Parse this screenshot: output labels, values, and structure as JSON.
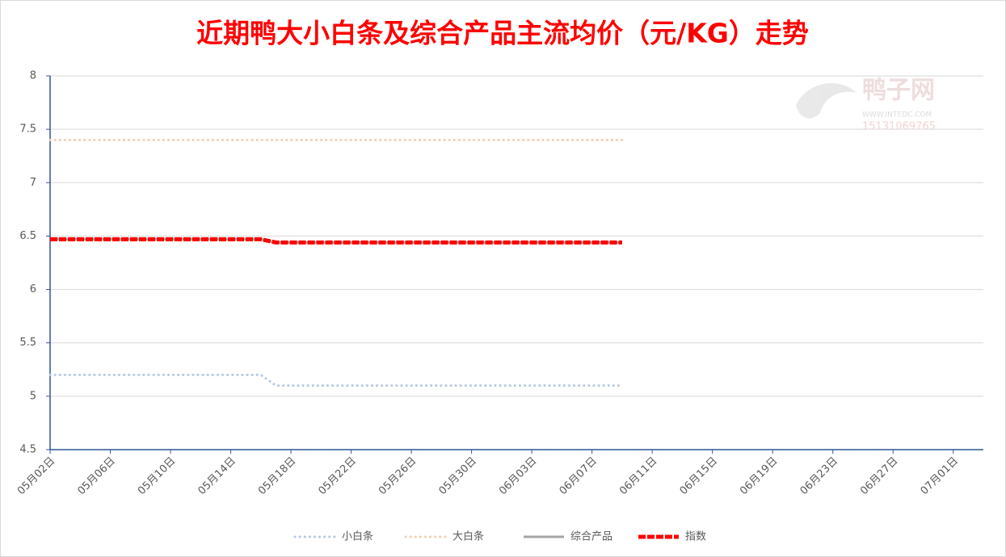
{
  "chart_data": {
    "type": "line",
    "title": "近期鸭大小白条及综合产品主流均价（元/KG）走势",
    "watermark": {
      "name": "鸭子网",
      "site": "WWW.INTEDC.COM",
      "phone": "15131069765"
    },
    "x": [
      "05月02日",
      "05月03日",
      "05月04日",
      "05月05日",
      "05月06日",
      "05月07日",
      "05月08日",
      "05月09日",
      "05月10日",
      "05月11日",
      "05月12日",
      "05月13日",
      "05月14日",
      "05月15日",
      "05月16日",
      "05月17日",
      "05月18日",
      "05月19日",
      "05月20日",
      "05月21日",
      "05月22日",
      "05月23日",
      "05月24日",
      "05月25日",
      "05月26日",
      "05月27日",
      "05月28日",
      "05月29日",
      "05月30日",
      "05月31日",
      "06月01日",
      "06月02日",
      "06月03日",
      "06月04日",
      "06月05日",
      "06月06日",
      "06月07日",
      "06月08日",
      "06月09日"
    ],
    "series": [
      {
        "name": "小白条",
        "color": "#b4c7e7",
        "style": "dotted",
        "values": [
          5.2,
          5.2,
          5.2,
          5.2,
          5.2,
          5.2,
          5.2,
          5.2,
          5.2,
          5.2,
          5.2,
          5.2,
          5.2,
          5.2,
          5.2,
          5.1,
          5.1,
          5.1,
          5.1,
          5.1,
          5.1,
          5.1,
          5.1,
          5.1,
          5.1,
          5.1,
          5.1,
          5.1,
          5.1,
          5.1,
          5.1,
          5.1,
          5.1,
          5.1,
          5.1,
          5.1,
          5.1,
          5.1,
          5.1
        ]
      },
      {
        "name": "大白条",
        "color": "#f8cbad",
        "style": "dotted",
        "values": [
          7.4,
          7.4,
          7.4,
          7.4,
          7.4,
          7.4,
          7.4,
          7.4,
          7.4,
          7.4,
          7.4,
          7.4,
          7.4,
          7.4,
          7.4,
          7.4,
          7.4,
          7.4,
          7.4,
          7.4,
          7.4,
          7.4,
          7.4,
          7.4,
          7.4,
          7.4,
          7.4,
          7.4,
          7.4,
          7.4,
          7.4,
          7.4,
          7.4,
          7.4,
          7.4,
          7.4,
          7.4,
          7.4,
          7.4
        ]
      },
      {
        "name": "综合产品",
        "color": "#a5a5a5",
        "style": "solid",
        "values": [
          6.47,
          6.47,
          6.47,
          6.47,
          6.47,
          6.47,
          6.47,
          6.47,
          6.47,
          6.47,
          6.47,
          6.47,
          6.47,
          6.47,
          6.47,
          6.44,
          6.44,
          6.44,
          6.44,
          6.44,
          6.44,
          6.44,
          6.44,
          6.44,
          6.44,
          6.44,
          6.44,
          6.44,
          6.44,
          6.44,
          6.44,
          6.44,
          6.44,
          6.44,
          6.44,
          6.44,
          6.44,
          6.44,
          6.44
        ]
      },
      {
        "name": "指数",
        "color": "#ff0000",
        "style": "thick",
        "values": [
          6.47,
          6.47,
          6.47,
          6.47,
          6.47,
          6.47,
          6.47,
          6.47,
          6.47,
          6.47,
          6.47,
          6.47,
          6.47,
          6.47,
          6.47,
          6.44,
          6.44,
          6.44,
          6.44,
          6.44,
          6.44,
          6.44,
          6.44,
          6.44,
          6.44,
          6.44,
          6.44,
          6.44,
          6.44,
          6.44,
          6.44,
          6.44,
          6.44,
          6.44,
          6.44,
          6.44,
          6.44,
          6.44,
          6.44
        ]
      }
    ],
    "xlim": [
      "05月02日",
      "07月03日"
    ],
    "xticks": [
      "05月02日",
      "05月06日",
      "05月10日",
      "05月14日",
      "05月18日",
      "05月22日",
      "05月26日",
      "05月30日",
      "06月03日",
      "06月07日",
      "06月11日",
      "06月15日",
      "06月19日",
      "06月23日",
      "06月27日",
      "07月01日"
    ],
    "ylim": [
      4.5,
      8
    ],
    "yticks": [
      4.5,
      5,
      5.5,
      6,
      6.5,
      7,
      7.5,
      8
    ],
    "grid": true
  }
}
